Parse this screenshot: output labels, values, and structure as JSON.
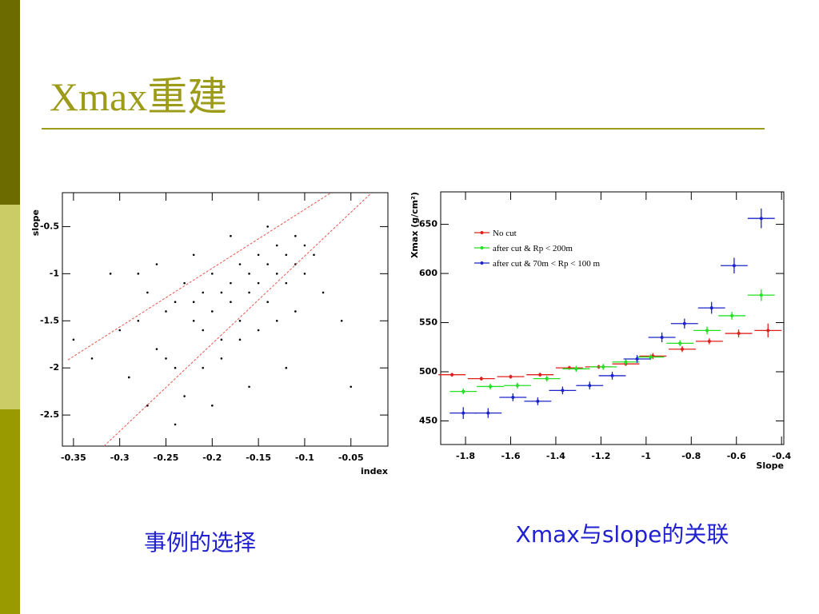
{
  "title": "Xmax重建",
  "captions": [
    "事例的选择",
    "Xmax与slope的关联"
  ],
  "chart_data": [
    {
      "type": "scatter",
      "xlabel": "index",
      "ylabel": "slope",
      "xlim": [
        -0.362,
        -0.01
      ],
      "ylim": [
        -2.83,
        -0.14
      ],
      "xticks": [
        -0.35,
        -0.3,
        -0.25,
        -0.2,
        -0.15,
        -0.1,
        -0.05
      ],
      "yticks": [
        -2.5,
        -2,
        -1.5,
        -1,
        -0.5
      ],
      "color": "#000000",
      "x": [
        -0.3,
        -0.28,
        -0.27,
        -0.26,
        -0.25,
        -0.24,
        -0.24,
        -0.23,
        -0.22,
        -0.22,
        -0.21,
        -0.21,
        -0.2,
        -0.2,
        -0.19,
        -0.19,
        -0.18,
        -0.18,
        -0.17,
        -0.17,
        -0.16,
        -0.16,
        -0.15,
        -0.15,
        -0.14,
        -0.14,
        -0.13,
        -0.13,
        -0.12,
        -0.12,
        -0.11,
        -0.11,
        -0.1,
        -0.1,
        -0.09,
        -0.08,
        -0.33,
        -0.31,
        -0.29,
        -0.27,
        -0.25,
        -0.23,
        -0.21,
        -0.19,
        -0.17,
        -0.15,
        -0.13,
        -0.11,
        -0.26,
        -0.22,
        -0.18,
        -0.14,
        -0.24,
        -0.2,
        -0.16,
        -0.12,
        -0.28,
        -0.06,
        -0.35,
        -0.05
      ],
      "y": [
        -1.6,
        -1.5,
        -1.2,
        -1.8,
        -1.4,
        -1.3,
        -2.0,
        -1.1,
        -1.5,
        -1.3,
        -1.2,
        -1.6,
        -1.4,
        -1.0,
        -1.2,
        -1.7,
        -1.1,
        -1.3,
        -0.9,
        -1.5,
        -1.0,
        -1.2,
        -0.8,
        -1.1,
        -0.9,
        -1.3,
        -0.7,
        -1.0,
        -0.8,
        -1.1,
        -0.6,
        -0.9,
        -0.7,
        -1.0,
        -0.8,
        -1.2,
        -1.9,
        -1.0,
        -2.1,
        -2.4,
        -1.9,
        -2.3,
        -2.0,
        -1.9,
        -1.7,
        -1.6,
        -1.5,
        -1.4,
        -0.9,
        -0.8,
        -0.6,
        -0.5,
        -2.6,
        -2.4,
        -2.2,
        -2.0,
        -1.0,
        -1.5,
        -1.7,
        -2.2
      ],
      "lines": [
        {
          "color": "#e8554e",
          "x": [
            -0.356,
            -0.072
          ],
          "y": [
            -1.915,
            -0.144
          ]
        },
        {
          "color": "#e8554e",
          "x": [
            -0.317,
            -0.028
          ],
          "y": [
            -2.83,
            -0.144
          ]
        }
      ]
    },
    {
      "type": "errorbar",
      "xlabel": "Slope",
      "ylabel": "Xmax (g/cm²)",
      "xlim": [
        -1.91,
        -0.39
      ],
      "ylim": [
        426,
        683
      ],
      "xticks": [
        -1.8,
        -1.6,
        -1.4,
        -1.2,
        -1,
        -0.8,
        -0.6,
        -0.4
      ],
      "yticks": [
        450,
        500,
        550,
        600,
        650
      ],
      "x_error": 0.06,
      "series": [
        {
          "name": "No cut",
          "color": "#e0201c",
          "x": [
            -1.86,
            -1.73,
            -1.6,
            -1.47,
            -1.34,
            -1.21,
            -1.09,
            -0.97,
            -0.84,
            -0.72,
            -0.59,
            -0.46
          ],
          "values": [
            497,
            493,
            495,
            497,
            504,
            505,
            508,
            516,
            523,
            531,
            539,
            542
          ],
          "errors": [
            2,
            2,
            2,
            2,
            2,
            2,
            2,
            3,
            3,
            3,
            4,
            7
          ]
        },
        {
          "name": "after cut & Rp < 200m",
          "color": "#22e022",
          "x": [
            -1.81,
            -1.69,
            -1.57,
            -1.44,
            -1.31,
            -1.19,
            -1.09,
            -0.98,
            -0.85,
            -0.73,
            -0.62,
            -0.49
          ],
          "values": [
            480,
            485,
            486,
            493,
            503,
            505,
            510,
            515,
            529,
            542,
            557,
            578
          ],
          "errors": [
            3,
            3,
            3,
            3,
            3,
            3,
            3,
            3,
            3,
            4,
            4,
            6
          ]
        },
        {
          "name": "after cut & 70m < Rp < 100 m",
          "color": "#1c24c8",
          "x": [
            -1.81,
            -1.7,
            -1.59,
            -1.48,
            -1.37,
            -1.25,
            -1.15,
            -1.04,
            -0.93,
            -0.83,
            -0.71,
            -0.61,
            -0.49
          ],
          "values": [
            458,
            458,
            474,
            470,
            481,
            486,
            496,
            513,
            535,
            549,
            565,
            608,
            656
          ],
          "errors": [
            6,
            5,
            4,
            4,
            4,
            4,
            4,
            4,
            5,
            5,
            6,
            8,
            10
          ]
        }
      ]
    }
  ]
}
